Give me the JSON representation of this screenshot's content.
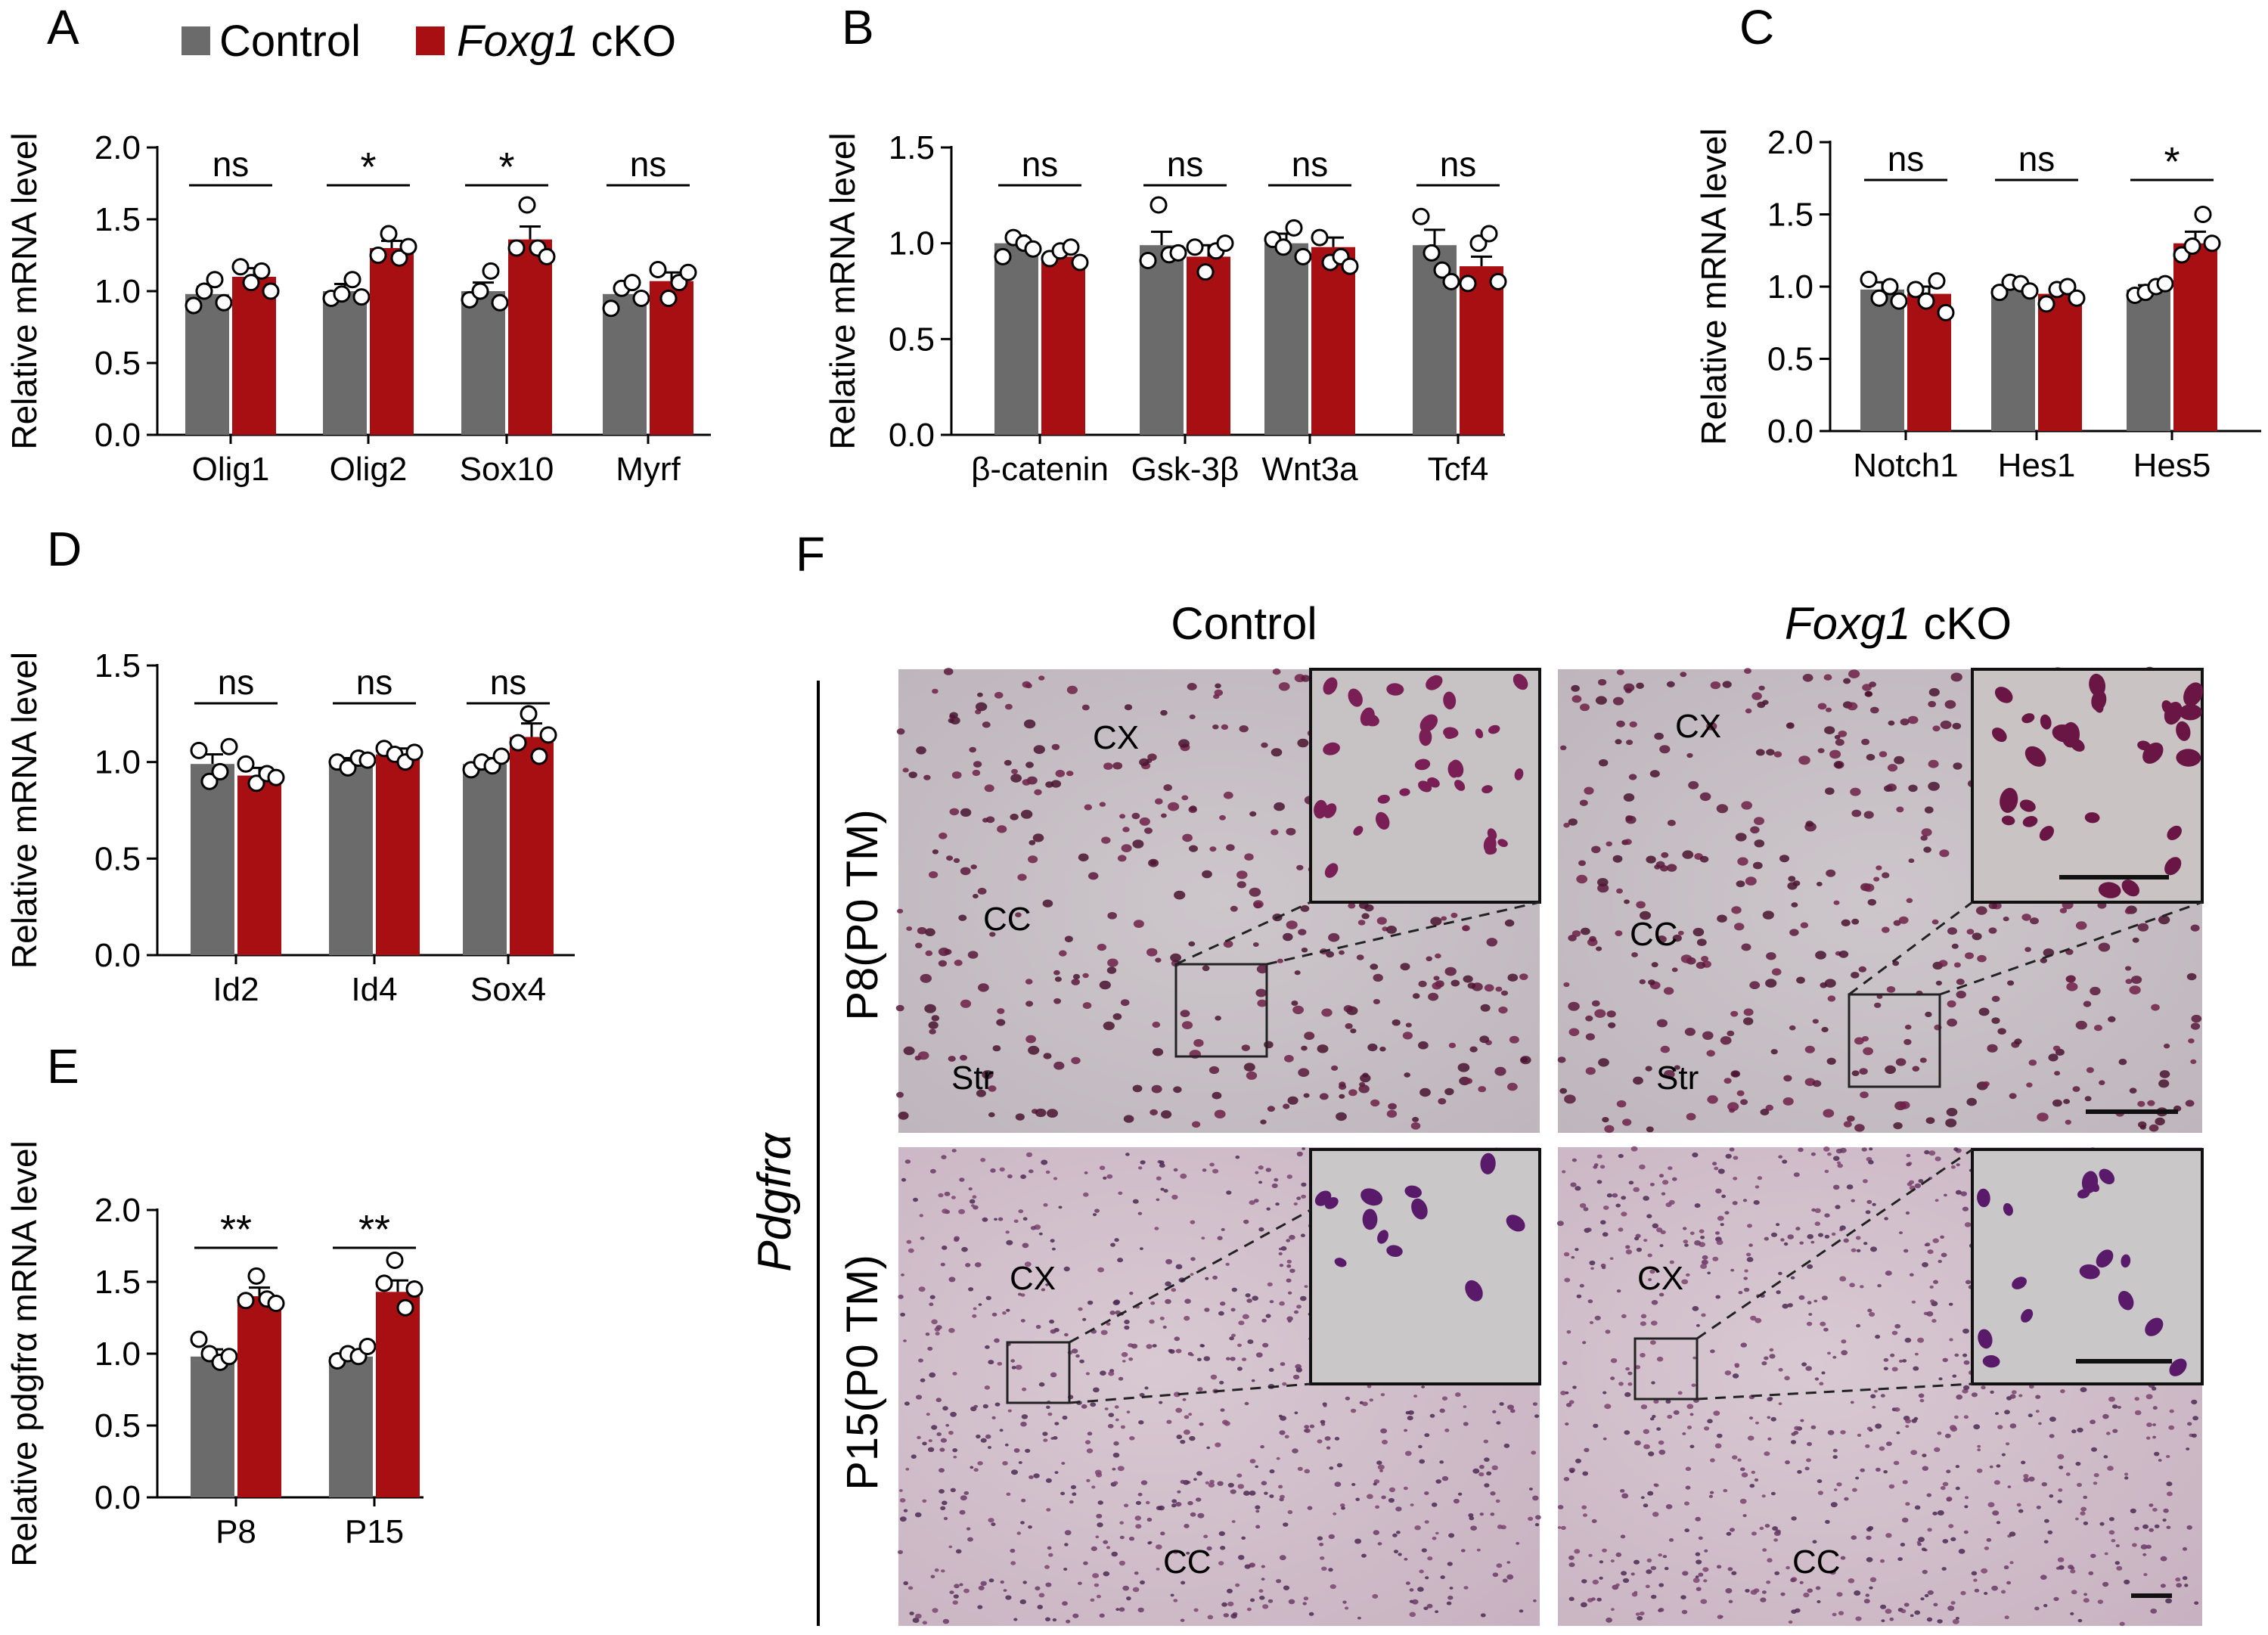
{
  "legend": {
    "control_label": "Control",
    "cko_gene": "Foxg1",
    "cko_suffix": "cKO",
    "control_color": "#6b6b6b",
    "cko_color": "#a80f12"
  },
  "chart_data": [
    {
      "panel": "A",
      "type": "bar",
      "ylabel": "Relative mRNA level",
      "ylim": [
        0,
        2.0
      ],
      "yticks": [
        "0.0",
        "0.5",
        "1.0",
        "1.5",
        "2.0"
      ],
      "categories": [
        "Olig1",
        "Olig2",
        "Sox10",
        "Myrf"
      ],
      "series": [
        {
          "name": "Control",
          "values": [
            0.98,
            1.0,
            1.0,
            0.98
          ],
          "sem": [
            0.05,
            0.05,
            0.06,
            0.06
          ],
          "points": [
            [
              0.9,
              1.0,
              1.08,
              0.92
            ],
            [
              0.95,
              0.98,
              1.08,
              0.96
            ],
            [
              0.94,
              1.0,
              1.14,
              0.92
            ],
            [
              0.88,
              1.02,
              1.06,
              0.95
            ]
          ]
        },
        {
          "name": "Foxg1 cKO",
          "values": [
            1.1,
            1.3,
            1.36,
            1.07
          ],
          "sem": [
            0.06,
            0.05,
            0.09,
            0.06
          ],
          "points": [
            [
              1.17,
              1.06,
              1.14,
              1.0
            ],
            [
              1.25,
              1.4,
              1.23,
              1.31
            ],
            [
              1.3,
              1.6,
              1.3,
              1.24
            ],
            [
              1.15,
              0.95,
              1.06,
              1.13
            ]
          ]
        }
      ],
      "significance": [
        "ns",
        "*",
        "*",
        "ns"
      ]
    },
    {
      "panel": "B",
      "type": "bar",
      "ylabel": "Relative mRNA level",
      "ylim": [
        0,
        1.5
      ],
      "yticks": [
        "0.0",
        "0.5",
        "1.0",
        "1.5"
      ],
      "categories": [
        "β-catenin",
        "Gsk-3β",
        "Wnt3a",
        "Tcf4"
      ],
      "series": [
        {
          "name": "Control",
          "values": [
            1.0,
            0.99,
            1.0,
            0.99
          ],
          "sem": [
            0.04,
            0.07,
            0.05,
            0.08
          ],
          "points": [
            [
              0.93,
              1.03,
              1.0,
              0.97
            ],
            [
              0.91,
              1.2,
              0.94,
              0.95
            ],
            [
              1.02,
              0.98,
              1.08,
              0.93
            ],
            [
              1.14,
              0.95,
              0.86,
              0.8
            ]
          ]
        },
        {
          "name": "Foxg1 cKO",
          "values": [
            0.93,
            0.93,
            0.98,
            0.88
          ],
          "sem": [
            0.04,
            0.06,
            0.05,
            0.05
          ],
          "points": [
            [
              0.92,
              0.96,
              0.98,
              0.9
            ],
            [
              0.98,
              0.85,
              0.96,
              1.0
            ],
            [
              1.03,
              0.9,
              0.93,
              0.88
            ],
            [
              0.79,
              1.0,
              1.05,
              0.8
            ]
          ]
        }
      ],
      "significance": [
        "ns",
        "ns",
        "ns",
        "ns"
      ]
    },
    {
      "panel": "C",
      "type": "bar",
      "ylabel": "Relative mRNA level",
      "ylim": [
        0,
        2.0
      ],
      "yticks": [
        "0.0",
        "0.5",
        "1.0",
        "1.5",
        "2.0"
      ],
      "categories": [
        "Notch1",
        "Hes1",
        "Hes5"
      ],
      "series": [
        {
          "name": "Control",
          "values": [
            0.98,
            0.99,
            0.98
          ],
          "sem": [
            0.05,
            0.04,
            0.03
          ],
          "points": [
            [
              1.05,
              0.92,
              1.0,
              0.9
            ],
            [
              0.96,
              1.03,
              1.02,
              0.97
            ],
            [
              0.94,
              0.96,
              1.0,
              1.02
            ]
          ]
        },
        {
          "name": "Foxg1 cKO",
          "values": [
            0.95,
            0.95,
            1.3
          ],
          "sem": [
            0.05,
            0.04,
            0.08
          ],
          "points": [
            [
              0.98,
              0.9,
              1.04,
              0.82
            ],
            [
              0.88,
              0.98,
              1.0,
              0.92
            ],
            [
              1.22,
              1.28,
              1.5,
              1.3
            ]
          ]
        }
      ],
      "significance": [
        "ns",
        "ns",
        "*"
      ]
    },
    {
      "panel": "D",
      "type": "bar",
      "ylabel": "Relative mRNA level",
      "ylim": [
        0,
        1.5
      ],
      "yticks": [
        "0.0",
        "0.5",
        "1.0",
        "1.5"
      ],
      "categories": [
        "Id2",
        "Id4",
        "Sox4"
      ],
      "series": [
        {
          "name": "Control",
          "values": [
            0.99,
            1.0,
            0.99
          ],
          "sem": [
            0.05,
            0.02,
            0.03
          ],
          "points": [
            [
              1.06,
              0.9,
              0.95,
              1.08
            ],
            [
              1.0,
              0.97,
              1.02,
              1.01
            ],
            [
              0.96,
              1.0,
              0.98,
              1.03
            ]
          ]
        },
        {
          "name": "Foxg1 cKO",
          "values": [
            0.93,
            1.04,
            1.13
          ],
          "sem": [
            0.04,
            0.03,
            0.07
          ],
          "points": [
            [
              0.99,
              0.89,
              0.94,
              0.92
            ],
            [
              1.07,
              1.04,
              1.0,
              1.05
            ],
            [
              1.1,
              1.25,
              1.03,
              1.14
            ]
          ]
        }
      ],
      "significance": [
        "ns",
        "ns",
        "ns"
      ]
    },
    {
      "panel": "E",
      "type": "bar",
      "ylabel": "Relative pdgfrα mRNA level",
      "ylim": [
        0,
        2.0
      ],
      "yticks": [
        "0.0",
        "0.5",
        "1.0",
        "1.5",
        "2.0"
      ],
      "categories": [
        "P8",
        "P15"
      ],
      "series": [
        {
          "name": "Control",
          "values": [
            0.98,
            0.98
          ],
          "sem": [
            0.05,
            0.03
          ],
          "points": [
            [
              1.1,
              1.0,
              0.94,
              0.98
            ],
            [
              0.95,
              1.0,
              0.98,
              1.05
            ]
          ]
        },
        {
          "name": "Foxg1 cKO",
          "values": [
            1.4,
            1.43
          ],
          "sem": [
            0.06,
            0.08
          ],
          "points": [
            [
              1.37,
              1.54,
              1.38,
              1.35
            ],
            [
              1.49,
              1.65,
              1.32,
              1.45
            ]
          ]
        }
      ],
      "significance": [
        "**",
        "**"
      ]
    }
  ],
  "panel_f": {
    "panel_label": "F",
    "column_headers": {
      "control": "Control",
      "cko_gene": "Foxg1",
      "cko_suffix": "cKO"
    },
    "stain_label": "Pdgfrα",
    "row_labels": [
      "P8(P0 TM)",
      "P15(P0 TM)"
    ],
    "regions": {
      "cortex": "CX",
      "corpus_callosum": "CC",
      "striatum": "Str"
    }
  }
}
